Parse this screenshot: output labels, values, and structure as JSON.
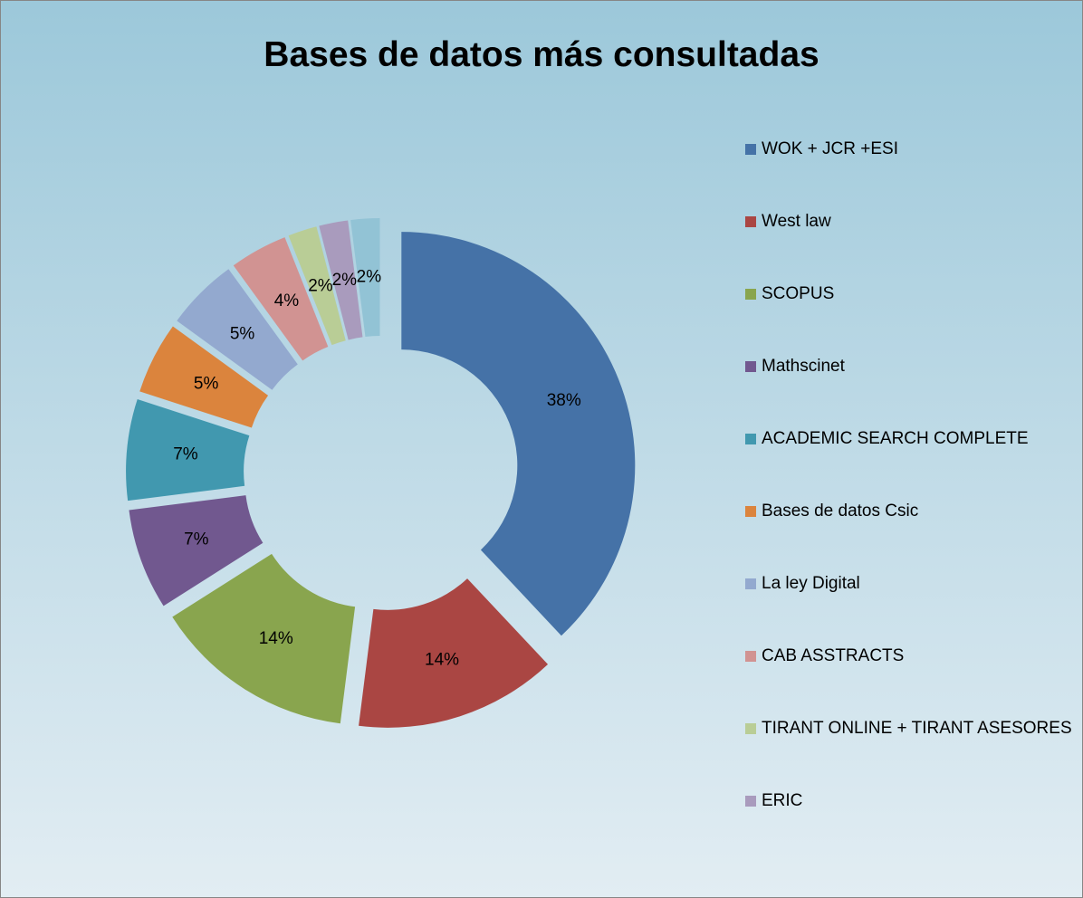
{
  "chart_data": {
    "type": "donut",
    "title": "Bases de datos más consultadas",
    "categories": [
      "WOK + JCR +ESI",
      "West law",
      "SCOPUS",
      "Mathscinet",
      "ACADEMIC SEARCH COMPLETE",
      "Bases de datos Csic",
      "La ley Digital",
      "CAB ASSTRACTS",
      "TIRANT ONLINE + TIRANT ASESORES",
      "ERIC",
      null
    ],
    "values": [
      38,
      14,
      14,
      7,
      7,
      5,
      5,
      4,
      2,
      2,
      2
    ],
    "value_labels": [
      "38%",
      "14%",
      "14%",
      "7%",
      "7%",
      "5%",
      "5%",
      "4%",
      "2%",
      "2%",
      "2%"
    ],
    "colors": [
      "#4572a7",
      "#aa4643",
      "#89a54e",
      "#71588f",
      "#4198af",
      "#db843d",
      "#93a9cf",
      "#d19392",
      "#b9cd96",
      "#a99bbd",
      "#92c3d5"
    ],
    "legend": "right"
  }
}
